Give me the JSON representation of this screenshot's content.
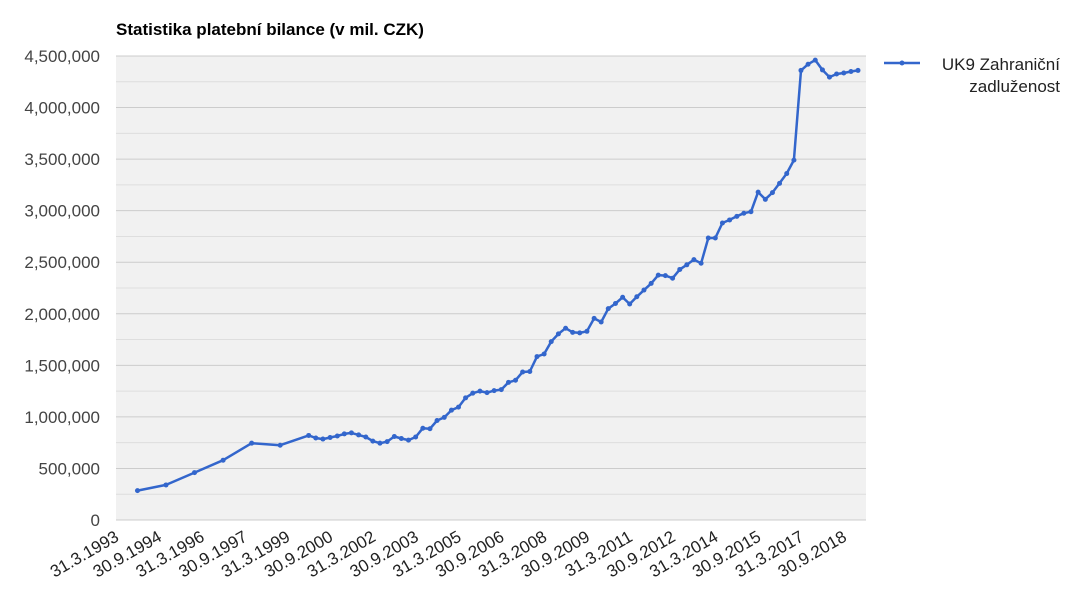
{
  "chart_data": {
    "type": "line",
    "title": "Statistika platební bilance (v mil. CZK)",
    "xlabel": "",
    "ylabel": "",
    "ylim": [
      0,
      4500000
    ],
    "yticks": [
      0,
      500000,
      1000000,
      1500000,
      2000000,
      2500000,
      3000000,
      3500000,
      4000000,
      4500000
    ],
    "ytick_labels": [
      "0",
      "500,000",
      "1,000,000",
      "1,500,000",
      "2,000,000",
      "2,500,000",
      "3,000,000",
      "3,500,000",
      "4,000,000",
      "4,500,000"
    ],
    "xtick_labels": [
      "31.3.1993",
      "30.9.1994",
      "31.3.1996",
      "30.9.1997",
      "31.3.1999",
      "30.9.2000",
      "31.3.2002",
      "30.9.2003",
      "31.3.2005",
      "30.9.2006",
      "31.3.2008",
      "30.9.2009",
      "31.3.2011",
      "30.9.2012",
      "31.3.2014",
      "30.9.2015",
      "31.3.2017",
      "30.9.2018"
    ],
    "grid": true,
    "legend_position": "right",
    "colors": {
      "series": "#3366cc",
      "plot_bg": "#f1f1f1",
      "grid": "#cccccc"
    },
    "series": [
      {
        "name": "UK9 Zahraniční zadluženost",
        "points": [
          [
            "1993-12-31",
            285000
          ],
          [
            "1994-12-31",
            340000
          ],
          [
            "1995-12-31",
            460000
          ],
          [
            "1996-12-31",
            580000
          ],
          [
            "1997-12-31",
            745000
          ],
          [
            "1998-12-31",
            725000
          ],
          [
            "1999-12-31",
            820000
          ],
          [
            "2000-03-31",
            795000
          ],
          [
            "2000-06-30",
            785000
          ],
          [
            "2000-09-30",
            800000
          ],
          [
            "2000-12-31",
            815000
          ],
          [
            "2001-03-31",
            835000
          ],
          [
            "2001-06-30",
            845000
          ],
          [
            "2001-09-30",
            825000
          ],
          [
            "2001-12-31",
            805000
          ],
          [
            "2002-03-31",
            765000
          ],
          [
            "2002-06-30",
            745000
          ],
          [
            "2002-09-30",
            760000
          ],
          [
            "2002-12-31",
            810000
          ],
          [
            "2003-03-31",
            790000
          ],
          [
            "2003-06-30",
            775000
          ],
          [
            "2003-09-30",
            805000
          ],
          [
            "2003-12-31",
            890000
          ],
          [
            "2004-03-31",
            885000
          ],
          [
            "2004-06-30",
            965000
          ],
          [
            "2004-09-30",
            995000
          ],
          [
            "2004-12-31",
            1065000
          ],
          [
            "2005-03-31",
            1095000
          ],
          [
            "2005-06-30",
            1185000
          ],
          [
            "2005-09-30",
            1230000
          ],
          [
            "2005-12-31",
            1250000
          ],
          [
            "2006-03-31",
            1235000
          ],
          [
            "2006-06-30",
            1255000
          ],
          [
            "2006-09-30",
            1265000
          ],
          [
            "2006-12-31",
            1335000
          ],
          [
            "2007-03-31",
            1355000
          ],
          [
            "2007-06-30",
            1435000
          ],
          [
            "2007-09-30",
            1440000
          ],
          [
            "2007-12-31",
            1585000
          ],
          [
            "2008-03-31",
            1610000
          ],
          [
            "2008-06-30",
            1730000
          ],
          [
            "2008-09-30",
            1805000
          ],
          [
            "2008-12-31",
            1860000
          ],
          [
            "2009-03-31",
            1820000
          ],
          [
            "2009-06-30",
            1815000
          ],
          [
            "2009-09-30",
            1830000
          ],
          [
            "2009-12-31",
            1955000
          ],
          [
            "2010-03-31",
            1920000
          ],
          [
            "2010-06-30",
            2050000
          ],
          [
            "2010-09-30",
            2100000
          ],
          [
            "2010-12-31",
            2160000
          ],
          [
            "2011-03-31",
            2095000
          ],
          [
            "2011-06-30",
            2165000
          ],
          [
            "2011-09-30",
            2230000
          ],
          [
            "2011-12-31",
            2295000
          ],
          [
            "2012-03-31",
            2375000
          ],
          [
            "2012-06-30",
            2370000
          ],
          [
            "2012-09-30",
            2345000
          ],
          [
            "2012-12-31",
            2430000
          ],
          [
            "2013-03-31",
            2475000
          ],
          [
            "2013-06-30",
            2525000
          ],
          [
            "2013-09-30",
            2490000
          ],
          [
            "2013-12-31",
            2735000
          ],
          [
            "2014-03-31",
            2735000
          ],
          [
            "2014-06-30",
            2880000
          ],
          [
            "2014-09-30",
            2910000
          ],
          [
            "2014-12-31",
            2945000
          ],
          [
            "2015-03-31",
            2975000
          ],
          [
            "2015-06-30",
            2990000
          ],
          [
            "2015-09-30",
            3180000
          ],
          [
            "2015-12-31",
            3110000
          ],
          [
            "2016-03-31",
            3175000
          ],
          [
            "2016-06-30",
            3265000
          ],
          [
            "2016-09-30",
            3360000
          ],
          [
            "2016-12-31",
            3490000
          ],
          [
            "2017-03-31",
            4360000
          ],
          [
            "2017-06-30",
            4420000
          ],
          [
            "2017-09-30",
            4460000
          ],
          [
            "2017-12-31",
            4365000
          ],
          [
            "2018-03-31",
            4295000
          ],
          [
            "2018-06-30",
            4325000
          ],
          [
            "2018-09-30",
            4335000
          ],
          [
            "2018-12-31",
            4350000
          ],
          [
            "2019-03-31",
            4360000
          ]
        ]
      }
    ]
  }
}
